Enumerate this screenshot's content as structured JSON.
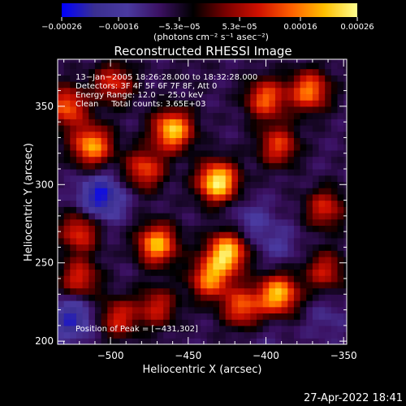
{
  "chart_data": {
    "type": "heatmap",
    "title": "Reconstructed RHESSI Image",
    "xlabel": "Heliocentric X (arcsec)",
    "ylabel": "Heliocentric Y (arcsec)",
    "xlim": [
      -534,
      -348
    ],
    "ylim": [
      198,
      380
    ],
    "xticks": [
      -500,
      -450,
      -400,
      -350
    ],
    "xtick_labels": [
      "−500",
      "−450",
      "−400",
      "−350"
    ],
    "yticks": [
      200,
      250,
      300,
      350
    ],
    "ytick_labels": [
      "200",
      "250",
      "300",
      "350"
    ],
    "colorbar": {
      "range": [
        -0.00026,
        0.00026
      ],
      "ticks": [
        -0.00026,
        -0.00016,
        -5.3e-05,
        5.3e-05,
        0.00016,
        0.00026
      ],
      "tick_labels": [
        "−0.00026",
        "−0.00016",
        "−5.3e−05",
        "5.3e−05",
        "0.00016",
        "0.00026"
      ],
      "label": "(photons cm⁻² s⁻¹ asec⁻²)",
      "colors": [
        "#0000ff",
        "#3a2f90",
        "#4a3aa0",
        "#3a1060",
        "#000000",
        "#7a0000",
        "#d01000",
        "#ff6000",
        "#ffc000",
        "#ffff90"
      ]
    },
    "annotations": [
      "13−Jan−2005 18:26:28.000 to 18:32:28.000",
      "Detectors: 3F 4F 5F 6F 7F 8F, Att 0",
      "Energy Range: 12.0 − 25.0 keV",
      "Clean     Total counts: 3.65E+03"
    ],
    "peak_label": "Position of Peak = [−431,302]",
    "peak": [
      -431,
      302
    ],
    "bright_sources": [
      {
        "x": -431,
        "y": 302,
        "value": 0.00026
      },
      {
        "x": -460,
        "y": 335,
        "value": 0.00022
      },
      {
        "x": -512,
        "y": 325,
        "value": 0.00019
      },
      {
        "x": -478,
        "y": 310,
        "value": 0.00012
      },
      {
        "x": -470,
        "y": 262,
        "value": 0.0002
      },
      {
        "x": -425,
        "y": 257,
        "value": 0.00023
      },
      {
        "x": -436,
        "y": 240,
        "value": 0.00016
      },
      {
        "x": -392,
        "y": 230,
        "value": 0.00021
      },
      {
        "x": -415,
        "y": 222,
        "value": 0.00013
      },
      {
        "x": -372,
        "y": 360,
        "value": 0.00016
      },
      {
        "x": -400,
        "y": 355,
        "value": 0.00014
      },
      {
        "x": -528,
        "y": 350,
        "value": 0.00014
      },
      {
        "x": -392,
        "y": 325,
        "value": 0.00011
      },
      {
        "x": -520,
        "y": 270,
        "value": 0.00011
      },
      {
        "x": -520,
        "y": 240,
        "value": 0.0001
      },
      {
        "x": -495,
        "y": 215,
        "value": 9e-05
      },
      {
        "x": -470,
        "y": 222,
        "value": 8e-05
      },
      {
        "x": -498,
        "y": 365,
        "value": 0.0001
      },
      {
        "x": -362,
        "y": 285,
        "value": 9e-05
      },
      {
        "x": -362,
        "y": 245,
        "value": 8e-05
      }
    ],
    "negative_regions": [
      {
        "x": -506,
        "y": 292,
        "value": -0.00025
      },
      {
        "x": -525,
        "y": 215,
        "value": -0.00022
      },
      {
        "x": -410,
        "y": 277,
        "value": -0.00014
      },
      {
        "x": -392,
        "y": 262,
        "value": -0.00013
      },
      {
        "x": -360,
        "y": 215,
        "value": -0.00012
      },
      {
        "x": -398,
        "y": 205,
        "value": -0.0001
      },
      {
        "x": -490,
        "y": 250,
        "value": -8e-05
      },
      {
        "x": -372,
        "y": 310,
        "value": -8e-05
      },
      {
        "x": -450,
        "y": 372,
        "value": -6e-05
      }
    ],
    "grid": false
  },
  "footer": {
    "timestamp": "27-Apr-2022 18:41"
  }
}
